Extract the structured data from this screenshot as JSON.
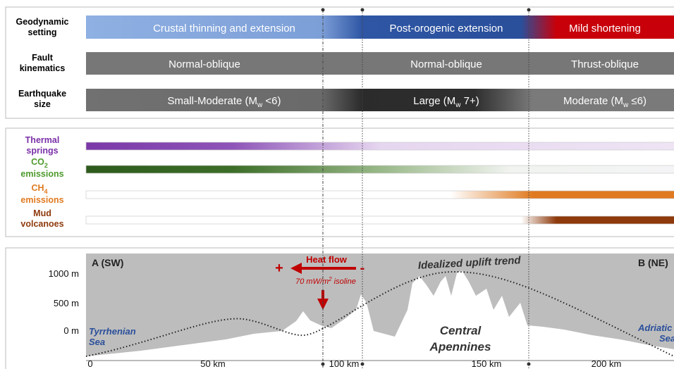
{
  "tectonics": {
    "labels": [
      [
        "Geodynamic",
        "setting"
      ],
      [
        "Fault",
        "kinematics"
      ],
      [
        "Earthquake",
        "size"
      ]
    ],
    "geodynamic": [
      "Crustal thinning and extension",
      "Post-orogenic extension",
      "Mild shortening"
    ],
    "kinematics": [
      "Normal-oblique",
      "Normal-oblique",
      "Thrust-oblique"
    ],
    "earthquake": [
      {
        "pre": "Small-Moderate (M",
        "sub": "w",
        "post": " <6)"
      },
      {
        "pre": "Large (M",
        "sub": "w",
        "post": " 7+)"
      },
      {
        "pre": "Moderate (M",
        "sub": "w",
        "post": " ≤6)"
      }
    ]
  },
  "fluids": {
    "labels": [
      {
        "l1": "Thermal",
        "l2": "springs"
      },
      {
        "l1": "CO",
        "sub": "2",
        "l2": "emissions"
      },
      {
        "l1": "CH",
        "sub": "4",
        "l2": "emissions"
      },
      {
        "l1": "Mud",
        "l2": "volcanoes"
      }
    ]
  },
  "profile": {
    "start": "A (SW)",
    "end": "B (NE)",
    "elevation_ticks": [
      "1000 m",
      "500 m",
      "0 m"
    ],
    "distance_ticks": [
      "0",
      "50 km",
      "100 km",
      "150 km",
      "200 km"
    ],
    "heat_flow": "Heat flow",
    "plus": "+",
    "minus": "-",
    "isoline": {
      "pre": "70 mW/m",
      "sup": "2",
      "post": " isoline"
    },
    "trend": "Idealized uplift trend",
    "tyrrhenian": [
      "Tyrrhenian",
      "Sea"
    ],
    "apennines": [
      "Central",
      "Apennines"
    ],
    "adriatic": [
      "Adriatic",
      "Sea"
    ]
  }
}
